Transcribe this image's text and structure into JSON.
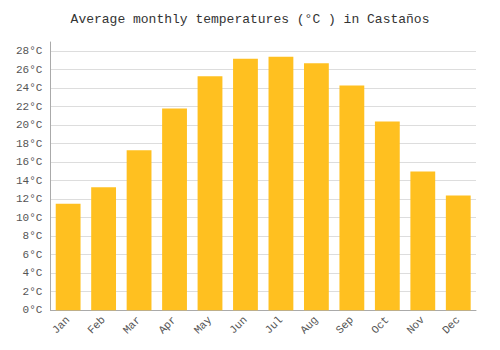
{
  "chart_data": {
    "type": "bar",
    "title": "Average monthly temperatures (°C ) in Castaños",
    "categories": [
      "Jan",
      "Feb",
      "Mar",
      "Apr",
      "May",
      "Jun",
      "Jul",
      "Aug",
      "Sep",
      "Oct",
      "Nov",
      "Dec"
    ],
    "values": [
      11.5,
      13.3,
      17.3,
      21.8,
      25.3,
      27.2,
      27.4,
      26.7,
      24.3,
      20.4,
      15.0,
      12.4
    ],
    "color": "#FFC020",
    "ylim": [
      0,
      29
    ],
    "yticks": [
      {
        "value": 0,
        "label": "0°C"
      },
      {
        "value": 2,
        "label": "2°C"
      },
      {
        "value": 4,
        "label": "4°C"
      },
      {
        "value": 6,
        "label": "6°C"
      },
      {
        "value": 8,
        "label": "8°C"
      },
      {
        "value": 10,
        "label": "10°C"
      },
      {
        "value": 12,
        "label": "12°C"
      },
      {
        "value": 14,
        "label": "14°C"
      },
      {
        "value": 16,
        "label": "16°C"
      },
      {
        "value": 18,
        "label": "18°C"
      },
      {
        "value": 20,
        "label": "20°C"
      },
      {
        "value": 22,
        "label": "22°C"
      },
      {
        "value": 24,
        "label": "24°C"
      },
      {
        "value": 26,
        "label": "26°C"
      },
      {
        "value": 28,
        "label": "28°C"
      }
    ],
    "grid": true
  }
}
